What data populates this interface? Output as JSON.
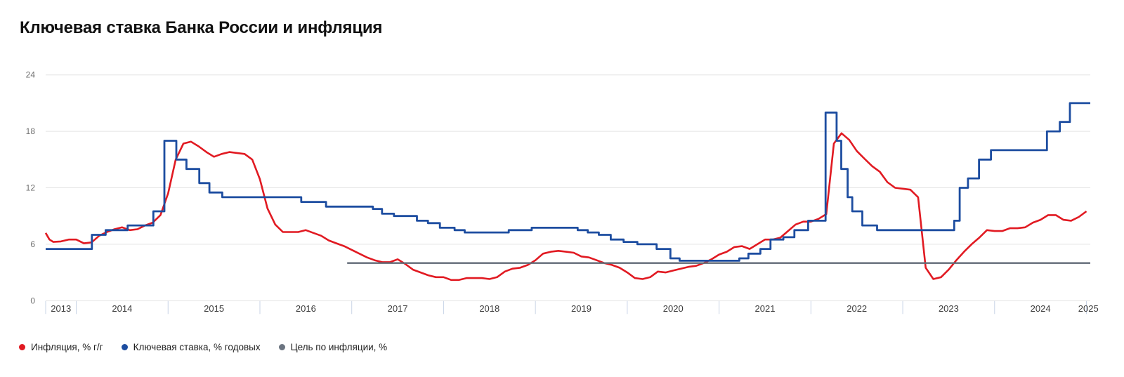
{
  "title": "Ключевая ставка Банка России и инфляция",
  "colors": {
    "inflation": "#e11a22",
    "key_rate": "#1d4da0",
    "target": "#606a76",
    "gridline": "#e3e3e3",
    "year_separator": "#c9d4e6",
    "y_tick_text": "#707070",
    "x_tick_text": "#3a3a3a",
    "title_text": "#111111"
  },
  "legend": {
    "items": [
      {
        "label": "Инфляция, % г/г",
        "color": "#e11a22"
      },
      {
        "label": "Ключевая ставка, % годовых",
        "color": "#1d4da0"
      },
      {
        "label": "Цель по инфляции, %",
        "color": "#6b7480"
      }
    ]
  },
  "chart_data": {
    "type": "line",
    "title": "Ключевая ставка Банка России и инфляция",
    "xlabel": "",
    "ylabel": "",
    "ylim": [
      0,
      24
    ],
    "y_ticks": [
      0,
      6,
      12,
      18,
      24
    ],
    "x_tick_years": [
      2013,
      2014,
      2015,
      2016,
      2017,
      2018,
      2019,
      2020,
      2021,
      2022,
      2023,
      2024,
      2025
    ],
    "x_range": [
      2013.667,
      2025.042
    ],
    "grid": "horizontal",
    "legend_position": "bottom-left",
    "series": [
      {
        "name": "Инфляция, % г/г",
        "render": "line",
        "color": "#e11a22",
        "points": [
          [
            2013.667,
            7.2
          ],
          [
            2013.708,
            6.5
          ],
          [
            2013.75,
            6.25
          ],
          [
            2013.833,
            6.3
          ],
          [
            2013.917,
            6.5
          ],
          [
            2014.0,
            6.5
          ],
          [
            2014.083,
            6.1
          ],
          [
            2014.167,
            6.2
          ],
          [
            2014.25,
            6.9
          ],
          [
            2014.333,
            7.3
          ],
          [
            2014.417,
            7.6
          ],
          [
            2014.5,
            7.8
          ],
          [
            2014.583,
            7.5
          ],
          [
            2014.667,
            7.6
          ],
          [
            2014.75,
            8.0
          ],
          [
            2014.833,
            8.3
          ],
          [
            2014.917,
            9.1
          ],
          [
            2015.0,
            11.4
          ],
          [
            2015.083,
            15.0
          ],
          [
            2015.167,
            16.7
          ],
          [
            2015.25,
            16.9
          ],
          [
            2015.333,
            16.4
          ],
          [
            2015.417,
            15.8
          ],
          [
            2015.5,
            15.3
          ],
          [
            2015.583,
            15.6
          ],
          [
            2015.667,
            15.8
          ],
          [
            2015.75,
            15.7
          ],
          [
            2015.833,
            15.6
          ],
          [
            2015.917,
            15.0
          ],
          [
            2016.0,
            12.9
          ],
          [
            2016.083,
            9.8
          ],
          [
            2016.167,
            8.1
          ],
          [
            2016.25,
            7.3
          ],
          [
            2016.333,
            7.3
          ],
          [
            2016.417,
            7.3
          ],
          [
            2016.5,
            7.5
          ],
          [
            2016.583,
            7.2
          ],
          [
            2016.667,
            6.9
          ],
          [
            2016.75,
            6.4
          ],
          [
            2016.833,
            6.1
          ],
          [
            2016.917,
            5.8
          ],
          [
            2017.0,
            5.4
          ],
          [
            2017.083,
            5.0
          ],
          [
            2017.167,
            4.6
          ],
          [
            2017.25,
            4.3
          ],
          [
            2017.333,
            4.1
          ],
          [
            2017.417,
            4.1
          ],
          [
            2017.5,
            4.4
          ],
          [
            2017.583,
            3.9
          ],
          [
            2017.667,
            3.3
          ],
          [
            2017.75,
            3.0
          ],
          [
            2017.833,
            2.7
          ],
          [
            2017.917,
            2.5
          ],
          [
            2018.0,
            2.5
          ],
          [
            2018.083,
            2.2
          ],
          [
            2018.167,
            2.2
          ],
          [
            2018.25,
            2.4
          ],
          [
            2018.333,
            2.4
          ],
          [
            2018.417,
            2.4
          ],
          [
            2018.5,
            2.3
          ],
          [
            2018.583,
            2.5
          ],
          [
            2018.667,
            3.1
          ],
          [
            2018.75,
            3.4
          ],
          [
            2018.833,
            3.5
          ],
          [
            2018.917,
            3.8
          ],
          [
            2019.0,
            4.3
          ],
          [
            2019.083,
            5.0
          ],
          [
            2019.167,
            5.2
          ],
          [
            2019.25,
            5.3
          ],
          [
            2019.333,
            5.2
          ],
          [
            2019.417,
            5.1
          ],
          [
            2019.5,
            4.7
          ],
          [
            2019.583,
            4.6
          ],
          [
            2019.667,
            4.3
          ],
          [
            2019.75,
            4.0
          ],
          [
            2019.833,
            3.8
          ],
          [
            2019.917,
            3.5
          ],
          [
            2020.0,
            3.0
          ],
          [
            2020.083,
            2.4
          ],
          [
            2020.167,
            2.3
          ],
          [
            2020.25,
            2.5
          ],
          [
            2020.333,
            3.1
          ],
          [
            2020.417,
            3.0
          ],
          [
            2020.5,
            3.2
          ],
          [
            2020.583,
            3.4
          ],
          [
            2020.667,
            3.6
          ],
          [
            2020.75,
            3.7
          ],
          [
            2020.833,
            4.0
          ],
          [
            2020.917,
            4.4
          ],
          [
            2021.0,
            4.9
          ],
          [
            2021.083,
            5.2
          ],
          [
            2021.167,
            5.7
          ],
          [
            2021.25,
            5.8
          ],
          [
            2021.333,
            5.5
          ],
          [
            2021.417,
            6.0
          ],
          [
            2021.5,
            6.5
          ],
          [
            2021.583,
            6.5
          ],
          [
            2021.667,
            6.7
          ],
          [
            2021.75,
            7.4
          ],
          [
            2021.833,
            8.1
          ],
          [
            2021.917,
            8.4
          ],
          [
            2022.0,
            8.4
          ],
          [
            2022.083,
            8.7
          ],
          [
            2022.167,
            9.2
          ],
          [
            2022.25,
            16.7
          ],
          [
            2022.333,
            17.8
          ],
          [
            2022.417,
            17.1
          ],
          [
            2022.5,
            15.9
          ],
          [
            2022.583,
            15.1
          ],
          [
            2022.667,
            14.3
          ],
          [
            2022.75,
            13.7
          ],
          [
            2022.833,
            12.6
          ],
          [
            2022.917,
            12.0
          ],
          [
            2023.0,
            11.9
          ],
          [
            2023.083,
            11.8
          ],
          [
            2023.167,
            11.0
          ],
          [
            2023.25,
            3.5
          ],
          [
            2023.333,
            2.3
          ],
          [
            2023.417,
            2.5
          ],
          [
            2023.5,
            3.3
          ],
          [
            2023.583,
            4.3
          ],
          [
            2023.667,
            5.2
          ],
          [
            2023.75,
            6.0
          ],
          [
            2023.833,
            6.7
          ],
          [
            2023.917,
            7.5
          ],
          [
            2024.0,
            7.4
          ],
          [
            2024.083,
            7.4
          ],
          [
            2024.167,
            7.7
          ],
          [
            2024.25,
            7.7
          ],
          [
            2024.333,
            7.8
          ],
          [
            2024.417,
            8.3
          ],
          [
            2024.5,
            8.6
          ],
          [
            2024.583,
            9.1
          ],
          [
            2024.667,
            9.1
          ],
          [
            2024.75,
            8.6
          ],
          [
            2024.833,
            8.5
          ],
          [
            2024.917,
            8.9
          ],
          [
            2025.0,
            9.5
          ]
        ]
      },
      {
        "name": "Ключевая ставка, % годовых",
        "render": "step-after",
        "color": "#1d4da0",
        "points": [
          [
            2013.667,
            5.5
          ],
          [
            2014.17,
            7.0
          ],
          [
            2014.32,
            7.5
          ],
          [
            2014.56,
            8.0
          ],
          [
            2014.84,
            9.5
          ],
          [
            2014.96,
            17.0
          ],
          [
            2015.09,
            15.0
          ],
          [
            2015.2,
            14.0
          ],
          [
            2015.34,
            12.5
          ],
          [
            2015.45,
            11.5
          ],
          [
            2015.59,
            11.0
          ],
          [
            2016.45,
            10.5
          ],
          [
            2016.72,
            10.0
          ],
          [
            2017.23,
            9.75
          ],
          [
            2017.33,
            9.25
          ],
          [
            2017.46,
            9.0
          ],
          [
            2017.71,
            8.5
          ],
          [
            2017.83,
            8.25
          ],
          [
            2017.96,
            7.75
          ],
          [
            2018.12,
            7.5
          ],
          [
            2018.23,
            7.25
          ],
          [
            2018.71,
            7.5
          ],
          [
            2018.96,
            7.75
          ],
          [
            2019.46,
            7.5
          ],
          [
            2019.57,
            7.25
          ],
          [
            2019.69,
            7.0
          ],
          [
            2019.82,
            6.5
          ],
          [
            2019.96,
            6.25
          ],
          [
            2020.11,
            6.0
          ],
          [
            2020.32,
            5.5
          ],
          [
            2020.47,
            4.5
          ],
          [
            2020.57,
            4.25
          ],
          [
            2021.22,
            4.5
          ],
          [
            2021.32,
            5.0
          ],
          [
            2021.45,
            5.5
          ],
          [
            2021.56,
            6.5
          ],
          [
            2021.7,
            6.75
          ],
          [
            2021.82,
            7.5
          ],
          [
            2021.97,
            8.5
          ],
          [
            2022.16,
            20.0
          ],
          [
            2022.28,
            17.0
          ],
          [
            2022.33,
            14.0
          ],
          [
            2022.4,
            11.0
          ],
          [
            2022.45,
            9.5
          ],
          [
            2022.56,
            8.0
          ],
          [
            2022.72,
            7.5
          ],
          [
            2023.56,
            8.5
          ],
          [
            2023.62,
            12.0
          ],
          [
            2023.71,
            13.0
          ],
          [
            2023.83,
            15.0
          ],
          [
            2023.96,
            16.0
          ],
          [
            2024.57,
            18.0
          ],
          [
            2024.71,
            19.0
          ],
          [
            2024.82,
            21.0
          ]
        ]
      },
      {
        "name": "Цель по инфляции, %",
        "render": "line",
        "color": "#606a76",
        "points": [
          [
            2016.95,
            4.0
          ],
          [
            2025.042,
            4.0
          ]
        ]
      }
    ]
  }
}
